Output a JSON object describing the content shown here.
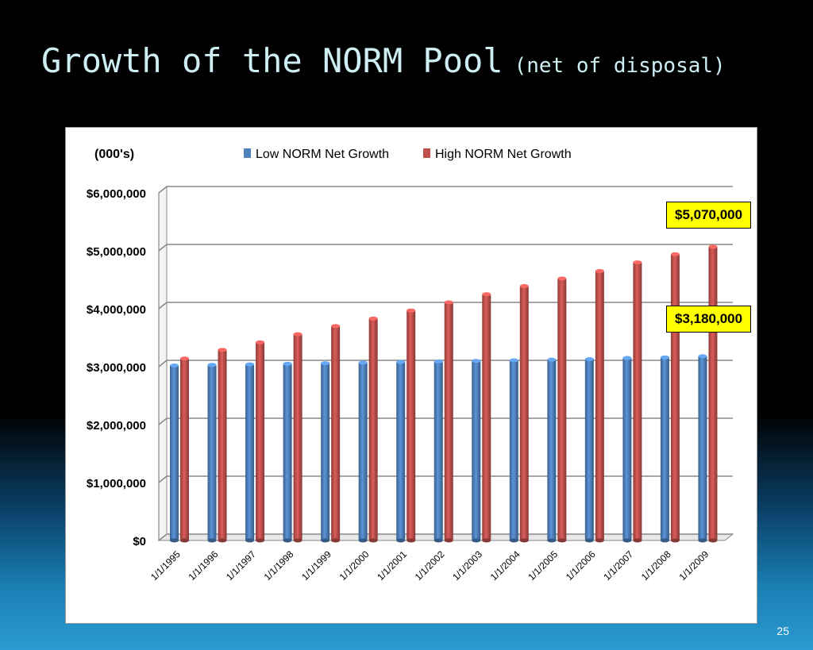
{
  "slide": {
    "title": "Growth of the NORM Pool",
    "subtitle": "(net of disposal)",
    "page_number": "25"
  },
  "chart_data": {
    "type": "bar",
    "ylabel": "(000's)",
    "categories": [
      "1/1/1995",
      "1/1/1996",
      "1/1/1997",
      "1/1/1998",
      "1/1/1999",
      "1/1/2000",
      "1/1/2001",
      "1/1/2002",
      "1/1/2003",
      "1/1/2004",
      "1/1/2005",
      "1/1/2006",
      "1/1/2007",
      "1/1/2008",
      "1/1/2009"
    ],
    "series": [
      {
        "name": "Low NORM Net Growth",
        "color": "#4f81bd",
        "values": [
          3020000,
          3030000,
          3040000,
          3050000,
          3060000,
          3070000,
          3080000,
          3090000,
          3100000,
          3110000,
          3120000,
          3130000,
          3150000,
          3160000,
          3180000
        ]
      },
      {
        "name": "High NORM Net Growth",
        "color": "#c0504d",
        "values": [
          3140000,
          3290000,
          3420000,
          3560000,
          3700000,
          3830000,
          3970000,
          4110000,
          4250000,
          4390000,
          4520000,
          4650000,
          4800000,
          4940000,
          5070000
        ]
      }
    ],
    "ylim": [
      0,
      6000000
    ],
    "yticks": [
      0,
      1000000,
      2000000,
      3000000,
      4000000,
      5000000,
      6000000
    ],
    "ytick_labels": [
      "$0",
      "$1,000,000",
      "$2,000,000",
      "$3,000,000",
      "$4,000,000",
      "$5,000,000",
      "$6,000,000"
    ],
    "grid": true,
    "legend": "top",
    "annotations": [
      {
        "text": "$5,070,000",
        "target": "High NORM Net Growth"
      },
      {
        "text": "$3,180,000",
        "target": "Low NORM Net Growth"
      }
    ]
  }
}
